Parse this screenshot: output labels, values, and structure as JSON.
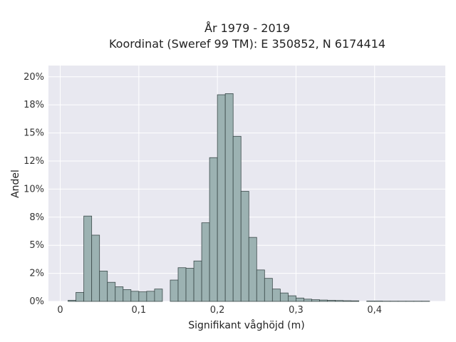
{
  "chart_data": {
    "type": "bar",
    "title": "År 1979 - 2019",
    "subtitle": "Koordinat (Sweref 99 TM): E 350852, N 6174414",
    "xlabel": "Signifikant våghöjd (m)",
    "ylabel": "Andel",
    "xlim": [
      -0.015,
      0.49
    ],
    "ylim": [
      0,
      21
    ],
    "x_ticks": [
      0,
      0.1,
      0.2,
      0.3,
      0.4
    ],
    "x_tick_labels": [
      "0",
      "0,1",
      "0,2",
      "0,3",
      "0,4"
    ],
    "y_ticks": [
      0,
      2.5,
      5,
      7.5,
      10,
      12.5,
      15,
      17.5,
      20
    ],
    "y_tick_labels": [
      "0%",
      "2%",
      "5%",
      "8%",
      "10%",
      "12%",
      "15%",
      "18%",
      "20%"
    ],
    "bin_width": 0.01,
    "bin_starts": [
      0.01,
      0.02,
      0.03,
      0.04,
      0.05,
      0.06,
      0.07,
      0.08,
      0.09,
      0.1,
      0.11,
      0.12,
      0.13,
      0.14,
      0.15,
      0.16,
      0.17,
      0.18,
      0.19,
      0.2,
      0.21,
      0.22,
      0.23,
      0.24,
      0.25,
      0.26,
      0.27,
      0.28,
      0.29,
      0.3,
      0.31,
      0.32,
      0.33,
      0.34,
      0.35,
      0.36,
      0.37,
      0.38,
      0.39,
      0.4,
      0.41,
      0.42,
      0.43,
      0.44,
      0.45,
      0.46
    ],
    "values": [
      0.1,
      0.8,
      7.6,
      5.9,
      2.7,
      1.7,
      1.3,
      1.05,
      0.9,
      0.85,
      0.9,
      1.1,
      0.0,
      1.9,
      3.0,
      2.95,
      3.6,
      7.0,
      12.8,
      18.4,
      18.5,
      14.7,
      9.8,
      5.7,
      2.8,
      2.05,
      1.1,
      0.75,
      0.5,
      0.3,
      0.2,
      0.15,
      0.12,
      0.1,
      0.08,
      0.06,
      0.05,
      0.0,
      0.03,
      0.03,
      0.02,
      0.02,
      0.02,
      0.02,
      0.02,
      0.02
    ],
    "grid": true,
    "colors": {
      "bar_fill": "#9cb2b2",
      "bar_stroke": "#3b4a4a",
      "plot_bg": "#e8e8f0",
      "grid": "#ffffff"
    }
  }
}
